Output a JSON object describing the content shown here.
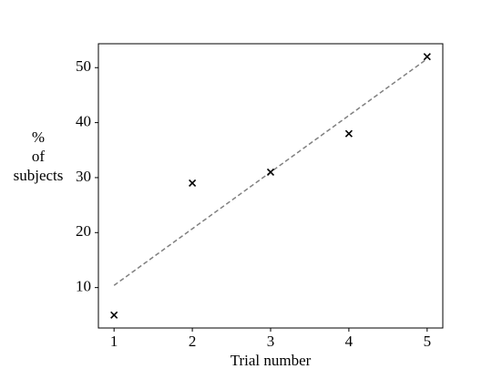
{
  "chart_data": {
    "type": "scatter",
    "xlabel": "Trial number",
    "ylabel": [
      "%",
      "of",
      "subjects"
    ],
    "x": [
      1,
      2,
      3,
      4,
      5
    ],
    "values": [
      5,
      29,
      31,
      38,
      52
    ],
    "marker": "x",
    "color": "#000000",
    "trend": {
      "x": [
        1,
        5
      ],
      "values": [
        10.4,
        51.6
      ],
      "color": "#808080",
      "dashed": true
    },
    "xlim": [
      0.8,
      5.2
    ],
    "xticks": [
      1,
      2,
      3,
      4,
      5
    ],
    "ylim": [
      2.65,
      54.35
    ],
    "yticks": [
      10,
      20,
      30,
      40,
      50
    ],
    "grid": false
  }
}
